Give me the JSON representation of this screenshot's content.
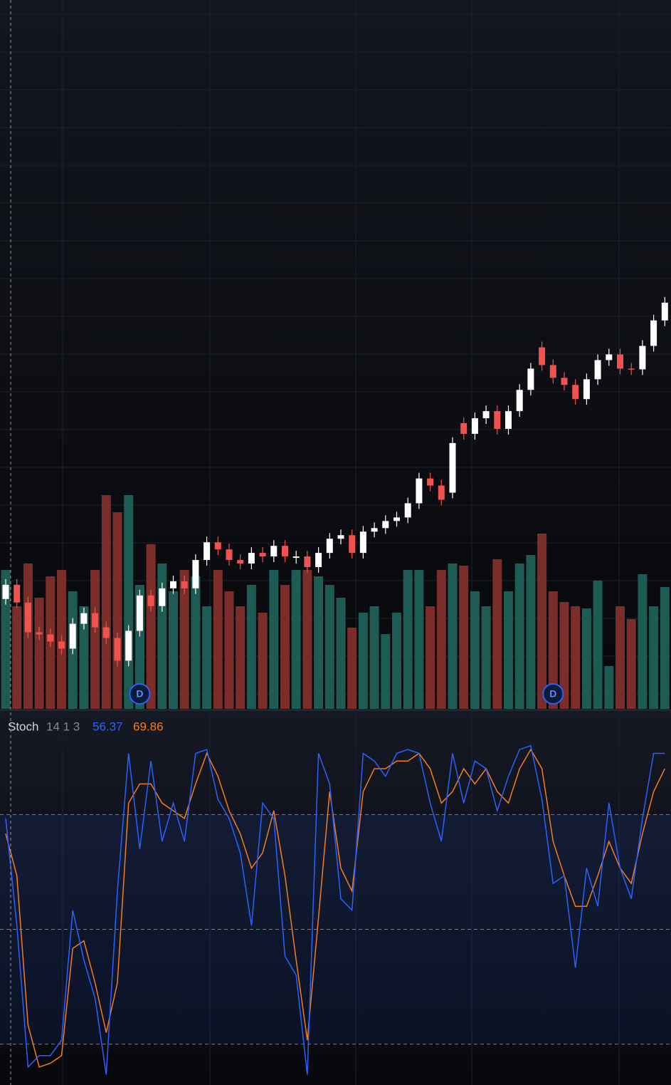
{
  "chart_data": [
    {
      "type": "candlestick",
      "ylim": [
        0,
        100
      ],
      "open": [
        15.5,
        17.5,
        15.0,
        10.8,
        10.5,
        9.5,
        8.5,
        12.0,
        13.5,
        11.5,
        10.0,
        6.8,
        11.0,
        16.0,
        14.5,
        17.0,
        18.0,
        17.0,
        21.0,
        23.5,
        22.5,
        21.0,
        20.5,
        22.0,
        21.5,
        23.0,
        21.3,
        21.5,
        20.0,
        22.0,
        24.0,
        24.5,
        22.0,
        25.0,
        25.5,
        26.5,
        27.0,
        29.0,
        32.5,
        31.5,
        30.5,
        40.3,
        38.8,
        41.0,
        42.0,
        39.5,
        42.0,
        45.0,
        51.0,
        48.5,
        46.7,
        45.7,
        43.7,
        46.5,
        49.2,
        50.0,
        48.0,
        47.9,
        51.2,
        54.8
      ],
      "high": [
        18.3,
        18.3,
        15.8,
        11.6,
        11.3,
        10.3,
        12.8,
        14.3,
        14.3,
        12.3,
        10.8,
        11.8,
        16.8,
        16.8,
        17.8,
        18.8,
        18.8,
        21.8,
        24.3,
        24.3,
        23.3,
        21.8,
        22.8,
        22.8,
        23.8,
        23.8,
        22.3,
        22.3,
        22.8,
        24.8,
        25.3,
        25.3,
        25.8,
        26.3,
        27.3,
        27.8,
        29.8,
        33.3,
        33.3,
        32.3,
        38.3,
        41.1,
        41.8,
        42.8,
        42.8,
        42.8,
        45.8,
        48.8,
        51.8,
        49.3,
        47.5,
        46.5,
        47.3,
        50.0,
        50.8,
        50.8,
        48.8,
        52.0,
        55.6,
        58.1
      ],
      "low": [
        14.7,
        14.2,
        10.0,
        9.7,
        8.7,
        7.7,
        7.7,
        11.2,
        10.7,
        9.2,
        6.0,
        6.0,
        10.2,
        13.7,
        13.7,
        16.2,
        16.2,
        16.2,
        20.2,
        21.7,
        20.2,
        19.7,
        19.7,
        20.7,
        20.7,
        20.7,
        20.5,
        19.2,
        19.2,
        21.2,
        23.2,
        21.2,
        21.2,
        24.2,
        24.7,
        25.7,
        26.2,
        28.2,
        30.7,
        28.7,
        29.7,
        38.0,
        38.0,
        40.2,
        38.7,
        38.7,
        41.2,
        44.2,
        47.7,
        45.9,
        44.9,
        42.9,
        42.9,
        45.7,
        48.4,
        47.2,
        47.1,
        47.1,
        50.4,
        54.0
      ],
      "close": [
        17.5,
        15.0,
        10.8,
        10.5,
        9.5,
        8.5,
        12.0,
        13.5,
        11.5,
        10.0,
        6.8,
        11.0,
        16.0,
        14.5,
        17.0,
        18.0,
        17.0,
        21.0,
        23.5,
        22.5,
        21.0,
        20.5,
        22.0,
        21.5,
        23.0,
        21.5,
        21.5,
        20.0,
        22.0,
        24.0,
        24.5,
        22.0,
        25.0,
        25.5,
        26.5,
        27.0,
        29.0,
        32.5,
        31.5,
        29.5,
        37.5,
        38.8,
        41.0,
        42.0,
        39.5,
        42.0,
        45.0,
        48.0,
        48.5,
        46.7,
        45.7,
        43.7,
        46.5,
        49.2,
        50.0,
        48.0,
        47.9,
        51.2,
        54.8,
        57.3
      ],
      "up_color": "#ffffff",
      "down_color": "#ef5350",
      "volume": {
        "ylim": [
          0,
          100
        ],
        "up_color": "#1d5b54",
        "down_color": "#7b2d2a",
        "values": [
          65,
          48,
          68,
          52,
          62,
          65,
          55,
          48,
          65,
          100,
          92,
          100,
          58,
          77,
          68,
          55,
          65,
          62,
          48,
          65,
          55,
          48,
          58,
          45,
          65,
          58,
          65,
          65,
          62,
          58,
          52,
          38,
          45,
          48,
          35,
          45,
          65,
          65,
          48,
          65,
          68,
          67,
          55,
          48,
          70,
          55,
          68,
          72,
          82,
          55,
          50,
          48,
          47,
          60,
          20,
          48,
          42,
          63,
          48,
          57
        ]
      },
      "events": [
        {
          "index": 12,
          "label": "D"
        },
        {
          "index": 49,
          "label": "D"
        }
      ]
    },
    {
      "type": "line",
      "title": "Stoch",
      "subtitle": "14 1 3",
      "ylim": [
        0,
        100
      ],
      "levels": [
        80,
        50,
        20
      ],
      "series": [
        {
          "color": "#2962ff",
          "readout": 56.37,
          "values": [
            79,
            51,
            14,
            17,
            17,
            21,
            55,
            42,
            32,
            12,
            60,
            96,
            71,
            94,
            73,
            83,
            73,
            96,
            97,
            84,
            79,
            70,
            51,
            83,
            79,
            43,
            38,
            12,
            96,
            88,
            58,
            55,
            96,
            94,
            90,
            96,
            97,
            96,
            83,
            73,
            96,
            83,
            94,
            92,
            81,
            90,
            97,
            98,
            84,
            62,
            64,
            40,
            66,
            56,
            83,
            66,
            58,
            79,
            96,
            96
          ]
        },
        {
          "color": "#f57c1f",
          "readout": 69.86,
          "values": [
            75,
            64,
            25,
            14,
            15,
            17,
            45,
            47,
            36,
            23,
            36,
            83,
            88,
            88,
            83,
            81,
            79,
            88,
            96,
            90,
            81,
            75,
            66,
            70,
            81,
            64,
            42,
            21,
            53,
            86,
            66,
            60,
            86,
            92,
            92,
            94,
            94,
            96,
            92,
            83,
            86,
            92,
            88,
            92,
            86,
            83,
            92,
            97,
            92,
            73,
            64,
            56,
            56,
            64,
            73,
            66,
            62,
            75,
            86,
            92
          ]
        }
      ]
    }
  ]
}
